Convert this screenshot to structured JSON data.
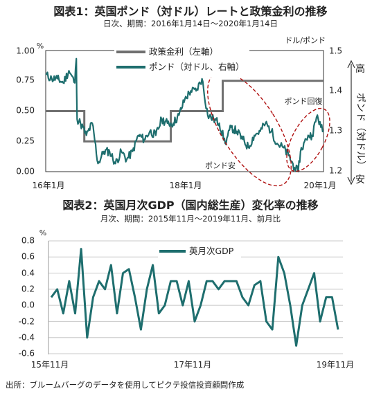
{
  "chart_data": [
    {
      "type": "line",
      "title": "図表1：英国ポンド（対ドル）レートと政策金利の推移",
      "subtitle": "日次、期間：2016年1月14日～2020年1月14日",
      "left_unit": "%",
      "right_unit": "ドル/ポンド",
      "left_ylim": [
        0,
        1.0
      ],
      "right_ylim": [
        1.2,
        1.5
      ],
      "left_ticks": [
        "1.00",
        "0.75",
        "0.50",
        "0.25",
        "0.00"
      ],
      "right_ticks": [
        "1.5",
        "1.4",
        "1.3",
        "1.2"
      ],
      "x_tick_labels": [
        "16年1月",
        "18年1月",
        "20年1月"
      ],
      "right_axis_label": {
        "top": "高",
        "middle": "ポンド（対ドル）",
        "bottom": "安"
      },
      "legend": [
        "政策金利（左軸）",
        "ポンド（対ドル、右軸）"
      ],
      "annotations": [
        "ポンド回復",
        "ポンド安"
      ],
      "grid": false,
      "legend_position": "top-center",
      "colors": {
        "policy_rate": "#707070",
        "gbp": "#1e6e6e",
        "ellipse": "#b01010"
      },
      "series": [
        {
          "name": "政策金利（左軸）",
          "axis": "left",
          "step": true,
          "points": [
            [
              "2016-01-14",
              0.5
            ],
            [
              "2016-08-04",
              0.25
            ],
            [
              "2017-11-02",
              0.5
            ],
            [
              "2018-08-02",
              0.75
            ],
            [
              "2020-01-14",
              0.75
            ]
          ]
        },
        {
          "name": "ポンド（対ドル、右軸）",
          "axis": "right",
          "points": [
            [
              "2016-01-14",
              1.44
            ],
            [
              "2016-02-15",
              1.43
            ],
            [
              "2016-03-15",
              1.43
            ],
            [
              "2016-04-15",
              1.42
            ],
            [
              "2016-05-15",
              1.45
            ],
            [
              "2016-06-15",
              1.42
            ],
            [
              "2016-06-23",
              1.48
            ],
            [
              "2016-06-27",
              1.33
            ],
            [
              "2016-07-15",
              1.32
            ],
            [
              "2016-08-15",
              1.29
            ],
            [
              "2016-09-15",
              1.32
            ],
            [
              "2016-10-15",
              1.22
            ],
            [
              "2016-11-15",
              1.25
            ],
            [
              "2016-12-15",
              1.25
            ],
            [
              "2017-01-15",
              1.22
            ],
            [
              "2017-02-15",
              1.25
            ],
            [
              "2017-03-15",
              1.23
            ],
            [
              "2017-04-15",
              1.25
            ],
            [
              "2017-05-15",
              1.29
            ],
            [
              "2017-06-15",
              1.28
            ],
            [
              "2017-07-15",
              1.3
            ],
            [
              "2017-08-15",
              1.29
            ],
            [
              "2017-09-15",
              1.33
            ],
            [
              "2017-10-15",
              1.32
            ],
            [
              "2017-11-15",
              1.32
            ],
            [
              "2017-12-15",
              1.34
            ],
            [
              "2018-01-15",
              1.38
            ],
            [
              "2018-02-15",
              1.4
            ],
            [
              "2018-03-15",
              1.4
            ],
            [
              "2018-04-15",
              1.43
            ],
            [
              "2018-05-15",
              1.34
            ],
            [
              "2018-06-15",
              1.33
            ],
            [
              "2018-07-15",
              1.32
            ],
            [
              "2018-08-15",
              1.27
            ],
            [
              "2018-09-15",
              1.31
            ],
            [
              "2018-10-15",
              1.3
            ],
            [
              "2018-11-15",
              1.28
            ],
            [
              "2018-12-15",
              1.26
            ],
            [
              "2019-01-15",
              1.29
            ],
            [
              "2019-02-15",
              1.3
            ],
            [
              "2019-03-15",
              1.32
            ],
            [
              "2019-04-15",
              1.3
            ],
            [
              "2019-05-15",
              1.27
            ],
            [
              "2019-06-15",
              1.26
            ],
            [
              "2019-07-15",
              1.24
            ],
            [
              "2019-08-15",
              1.21
            ],
            [
              "2019-09-03",
              1.2
            ],
            [
              "2019-09-15",
              1.25
            ],
            [
              "2019-10-15",
              1.28
            ],
            [
              "2019-10-25",
              1.29
            ],
            [
              "2019-11-15",
              1.29
            ],
            [
              "2019-12-13",
              1.34
            ],
            [
              "2019-12-31",
              1.31
            ],
            [
              "2020-01-14",
              1.3
            ]
          ]
        }
      ]
    },
    {
      "type": "line",
      "title": "図表2：英国月次GDP（国内総生産）変化率の推移",
      "subtitle": "月次、期間：2015年11月～2019年11月、前月比",
      "left_unit": "%",
      "ylim": [
        -0.6,
        0.8
      ],
      "y_ticks": [
        "0.8",
        "0.6",
        "0.4",
        "0.2",
        "0.0",
        "-0.2",
        "-0.4",
        "-0.6"
      ],
      "x_tick_labels": [
        "15年11月",
        "17年11月",
        "19年11月"
      ],
      "legend": [
        "英月次GDP"
      ],
      "grid": true,
      "legend_position": "top-center",
      "colors": {
        "gdp": "#1e6e6e"
      },
      "series": [
        {
          "name": "英月次GDP",
          "values": [
            0.1,
            0.2,
            -0.1,
            0.3,
            -0.1,
            0.7,
            -0.4,
            0.1,
            0.3,
            0.2,
            0.5,
            -0.1,
            0.4,
            0.45,
            0.1,
            -0.3,
            0.2,
            0.5,
            -0.1,
            0.0,
            0.3,
            0.3,
            0.0,
            0.3,
            -0.2,
            0.0,
            0.3,
            0.3,
            0.2,
            0.3,
            0.3,
            0.3,
            0.1,
            0.0,
            0.25,
            0.3,
            -0.2,
            -0.3,
            0.6,
            0.4,
            0.0,
            -0.5,
            0.0,
            0.2,
            0.4,
            -0.2,
            0.1,
            0.1,
            -0.3
          ]
        }
      ]
    }
  ],
  "source": "出所：ブルームバーグのデータを使用してピクテ投信投資顧問作成"
}
